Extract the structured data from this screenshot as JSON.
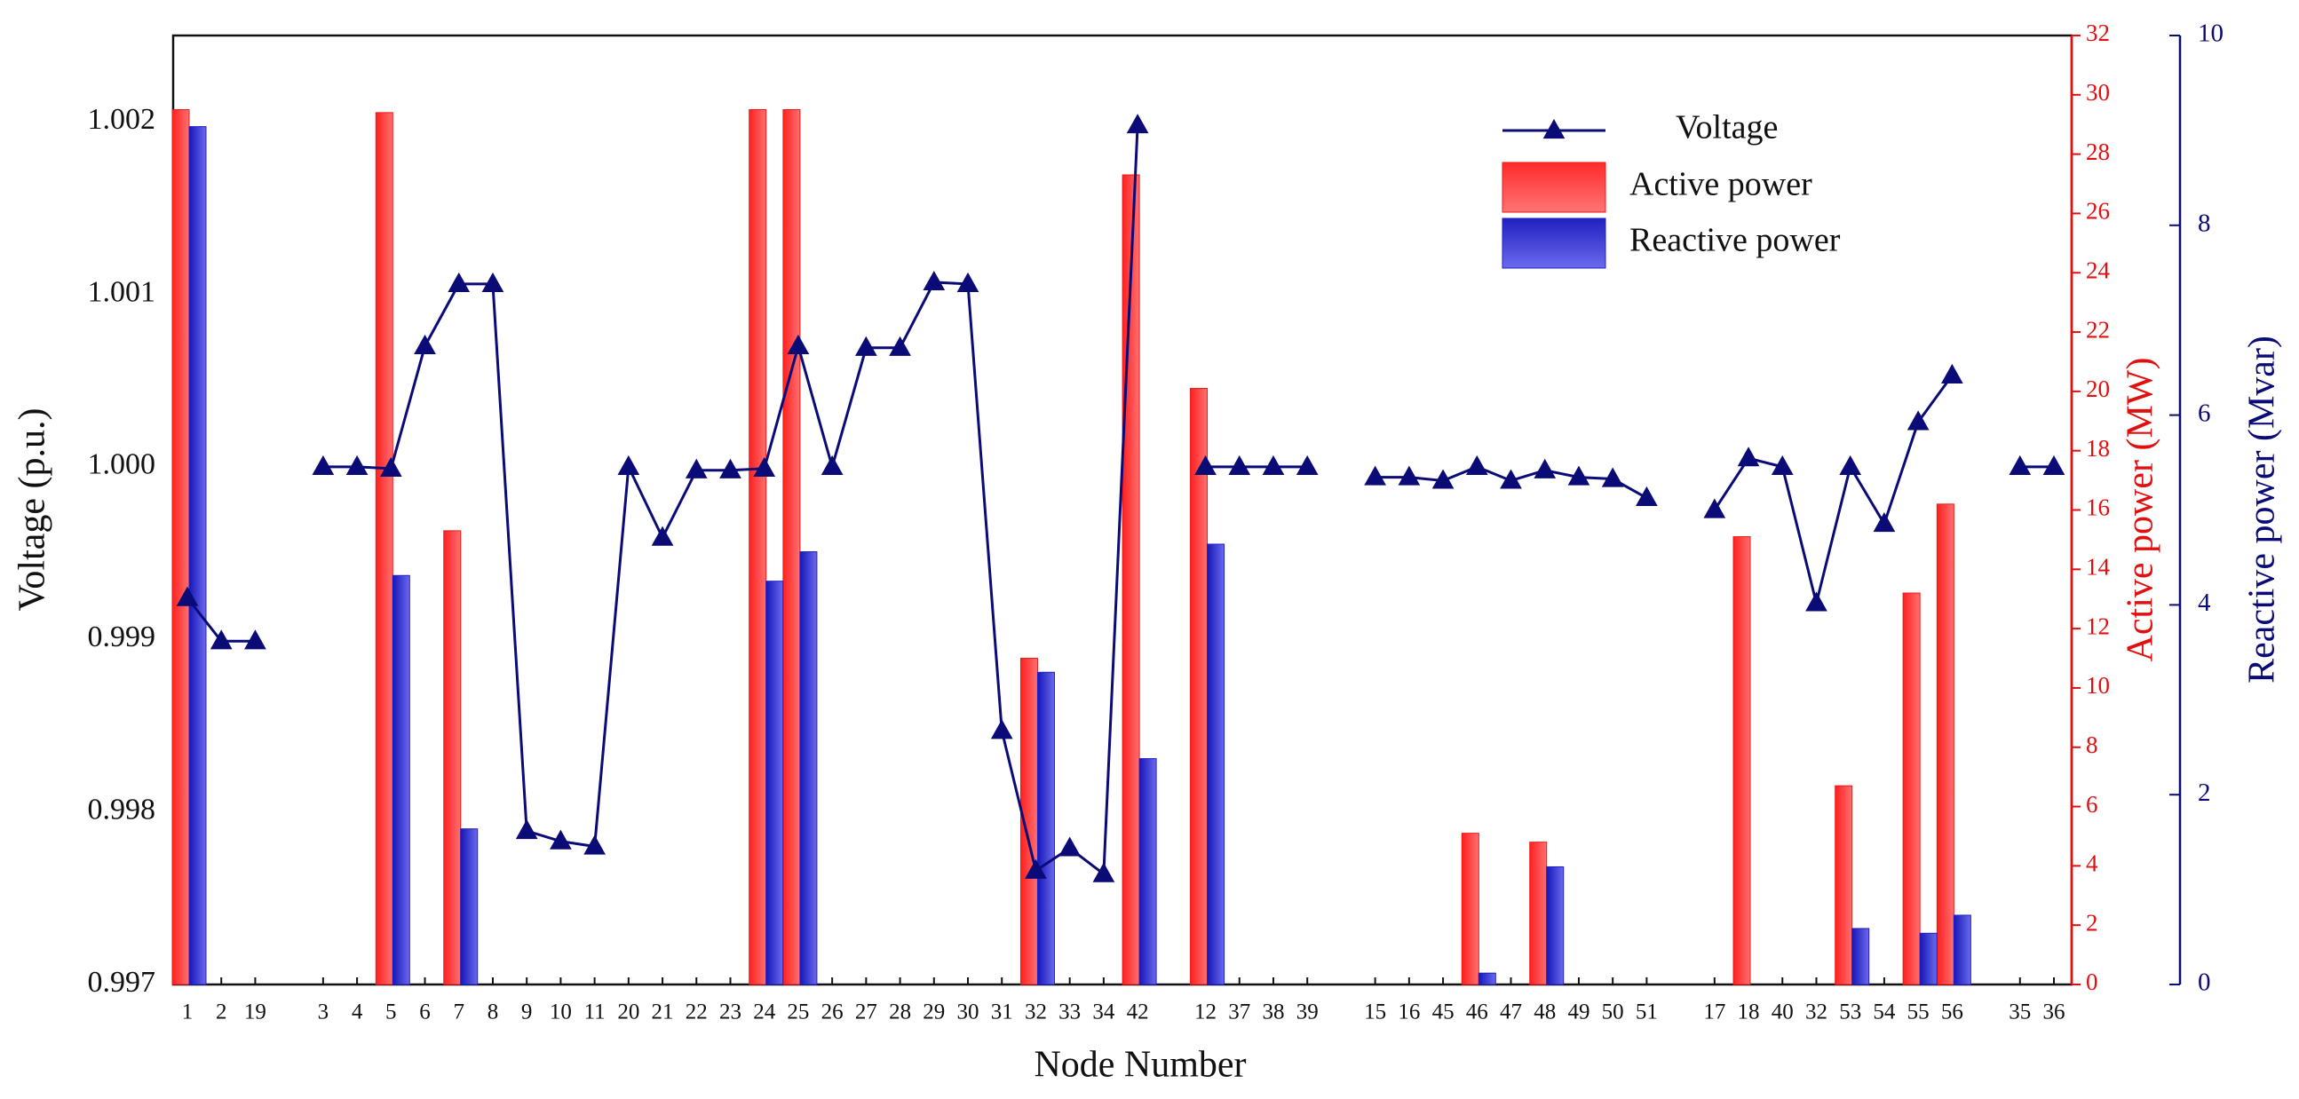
{
  "chart_data": {
    "type": "combo",
    "x_label": "Node Number",
    "y_label": "Voltage  (p.u.)",
    "y2_label": "Active power  (MW)",
    "y3_label": "Reactive power  (Mvar)",
    "categories": [
      "1",
      "2",
      "19",
      null,
      "3",
      "4",
      "5",
      "6",
      "7",
      "8",
      "9",
      "10",
      "11",
      "20",
      "21",
      "22",
      "23",
      "24",
      "25",
      "26",
      "27",
      "28",
      "29",
      "30",
      "31",
      "32",
      "33",
      "34",
      "42",
      null,
      "12",
      "37",
      "38",
      "39",
      null,
      "15",
      "16",
      "45",
      "46",
      "47",
      "48",
      "49",
      "50",
      "51",
      null,
      "17",
      "18",
      "40",
      "32",
      "53",
      "54",
      "55",
      "56",
      null,
      "35",
      "36"
    ],
    "ylim": [
      0.997,
      1.0025
    ],
    "yticks": [
      0.997,
      0.998,
      0.999,
      {
        "value": 1,
        "label": "1.000"
      },
      1.001,
      1.002
    ],
    "y2lim": [
      0,
      32
    ],
    "y2ticks": [
      0,
      2,
      4,
      6,
      8,
      10,
      12,
      14,
      16,
      18,
      20,
      22,
      24,
      26,
      28,
      30,
      32
    ],
    "y3lim": [
      0,
      10
    ],
    "y3ticks": [
      0,
      2,
      4,
      6,
      8,
      10
    ],
    "legend": "upper right",
    "series": [
      {
        "name": "Voltage",
        "type": "line",
        "axis": "y",
        "color": "#0b0b78",
        "values": [
          0.99924,
          0.99899,
          0.99899,
          null,
          1.0,
          1.0,
          0.99999,
          1.0007,
          1.00106,
          1.00106,
          0.99789,
          0.99783,
          0.9978,
          1.0,
          0.99959,
          0.99998,
          0.99998,
          0.99999,
          1.0007,
          1.0,
          1.00069,
          1.00069,
          1.00107,
          1.00106,
          0.99847,
          0.99766,
          0.99779,
          0.99764,
          1.00198,
          null,
          1.0,
          1.0,
          1.0,
          1.0,
          null,
          0.99994,
          0.99994,
          0.99992,
          1.0,
          0.99992,
          0.99998,
          0.99994,
          0.99993,
          0.99982,
          null,
          0.99975,
          1.00005,
          1.0,
          0.99921,
          1.0,
          0.99967,
          1.00026,
          1.00053,
          null,
          1.0,
          1.0
        ]
      },
      {
        "name": "Active power",
        "type": "bar",
        "axis": "y2",
        "color": "#f01818",
        "values": [
          29.5,
          null,
          null,
          null,
          null,
          null,
          29.4,
          null,
          15.3,
          null,
          null,
          null,
          null,
          null,
          null,
          null,
          null,
          29.5,
          29.5,
          null,
          null,
          null,
          null,
          null,
          null,
          11.0,
          null,
          null,
          27.3,
          null,
          20.1,
          null,
          null,
          null,
          null,
          null,
          null,
          null,
          5.1,
          null,
          4.8,
          null,
          null,
          null,
          null,
          null,
          15.1,
          null,
          null,
          6.7,
          null,
          13.2,
          16.2,
          null,
          null,
          null
        ]
      },
      {
        "name": "Reactive power",
        "type": "bar",
        "axis": "y3",
        "color": "#2020c8",
        "values": [
          9.04,
          null,
          null,
          null,
          null,
          null,
          4.31,
          null,
          1.64,
          null,
          null,
          null,
          null,
          null,
          null,
          null,
          null,
          4.25,
          4.56,
          null,
          null,
          null,
          null,
          null,
          null,
          3.29,
          null,
          null,
          2.38,
          null,
          4.64,
          null,
          null,
          null,
          null,
          null,
          null,
          null,
          0.12,
          null,
          1.24,
          null,
          null,
          null,
          null,
          null,
          null,
          null,
          null,
          0.59,
          null,
          0.54,
          0.73,
          null,
          null,
          null
        ]
      }
    ]
  }
}
